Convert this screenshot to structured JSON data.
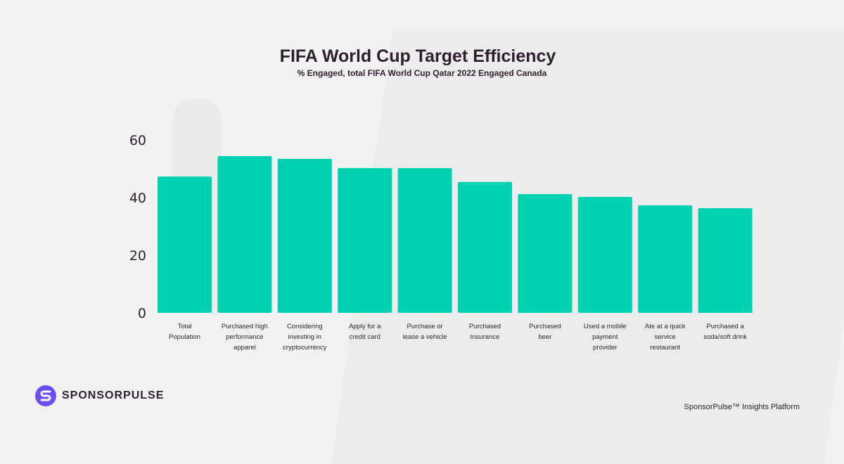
{
  "chart_data": {
    "type": "bar",
    "title": "FIFA World Cup Target Efficiency",
    "subtitle": "% Engaged, total FIFA World Cup Qatar 2022 Engaged Canada",
    "categories": [
      "Total\nPopulation",
      "Purchased high\nperformance\napparel",
      "Considering\ninvesting in\ncryptocurrency",
      "Apply for  a\ncredit card",
      "Purchase or\nlease a vehicle",
      "Purchased\nInsurance",
      "Purchased\nbeer",
      "Used a mobile\npayment\nprovider",
      "Ate at a quick\nservice\nrestaurant",
      "Purchased a\nsoda/soft drink"
    ],
    "values": [
      47.3,
      54.4,
      53.4,
      50.2,
      50.2,
      45.4,
      41.2,
      40.2,
      37.3,
      36.3
    ],
    "yticks": [
      0,
      20,
      40,
      60
    ],
    "ylim": [
      0,
      60
    ],
    "grid": false,
    "bar_color": "#00d1b0"
  },
  "brand": {
    "name": "SPONSORPULSE",
    "color": "#6c4cf5"
  },
  "footer": "SponsorPulse™ Insights Platform"
}
